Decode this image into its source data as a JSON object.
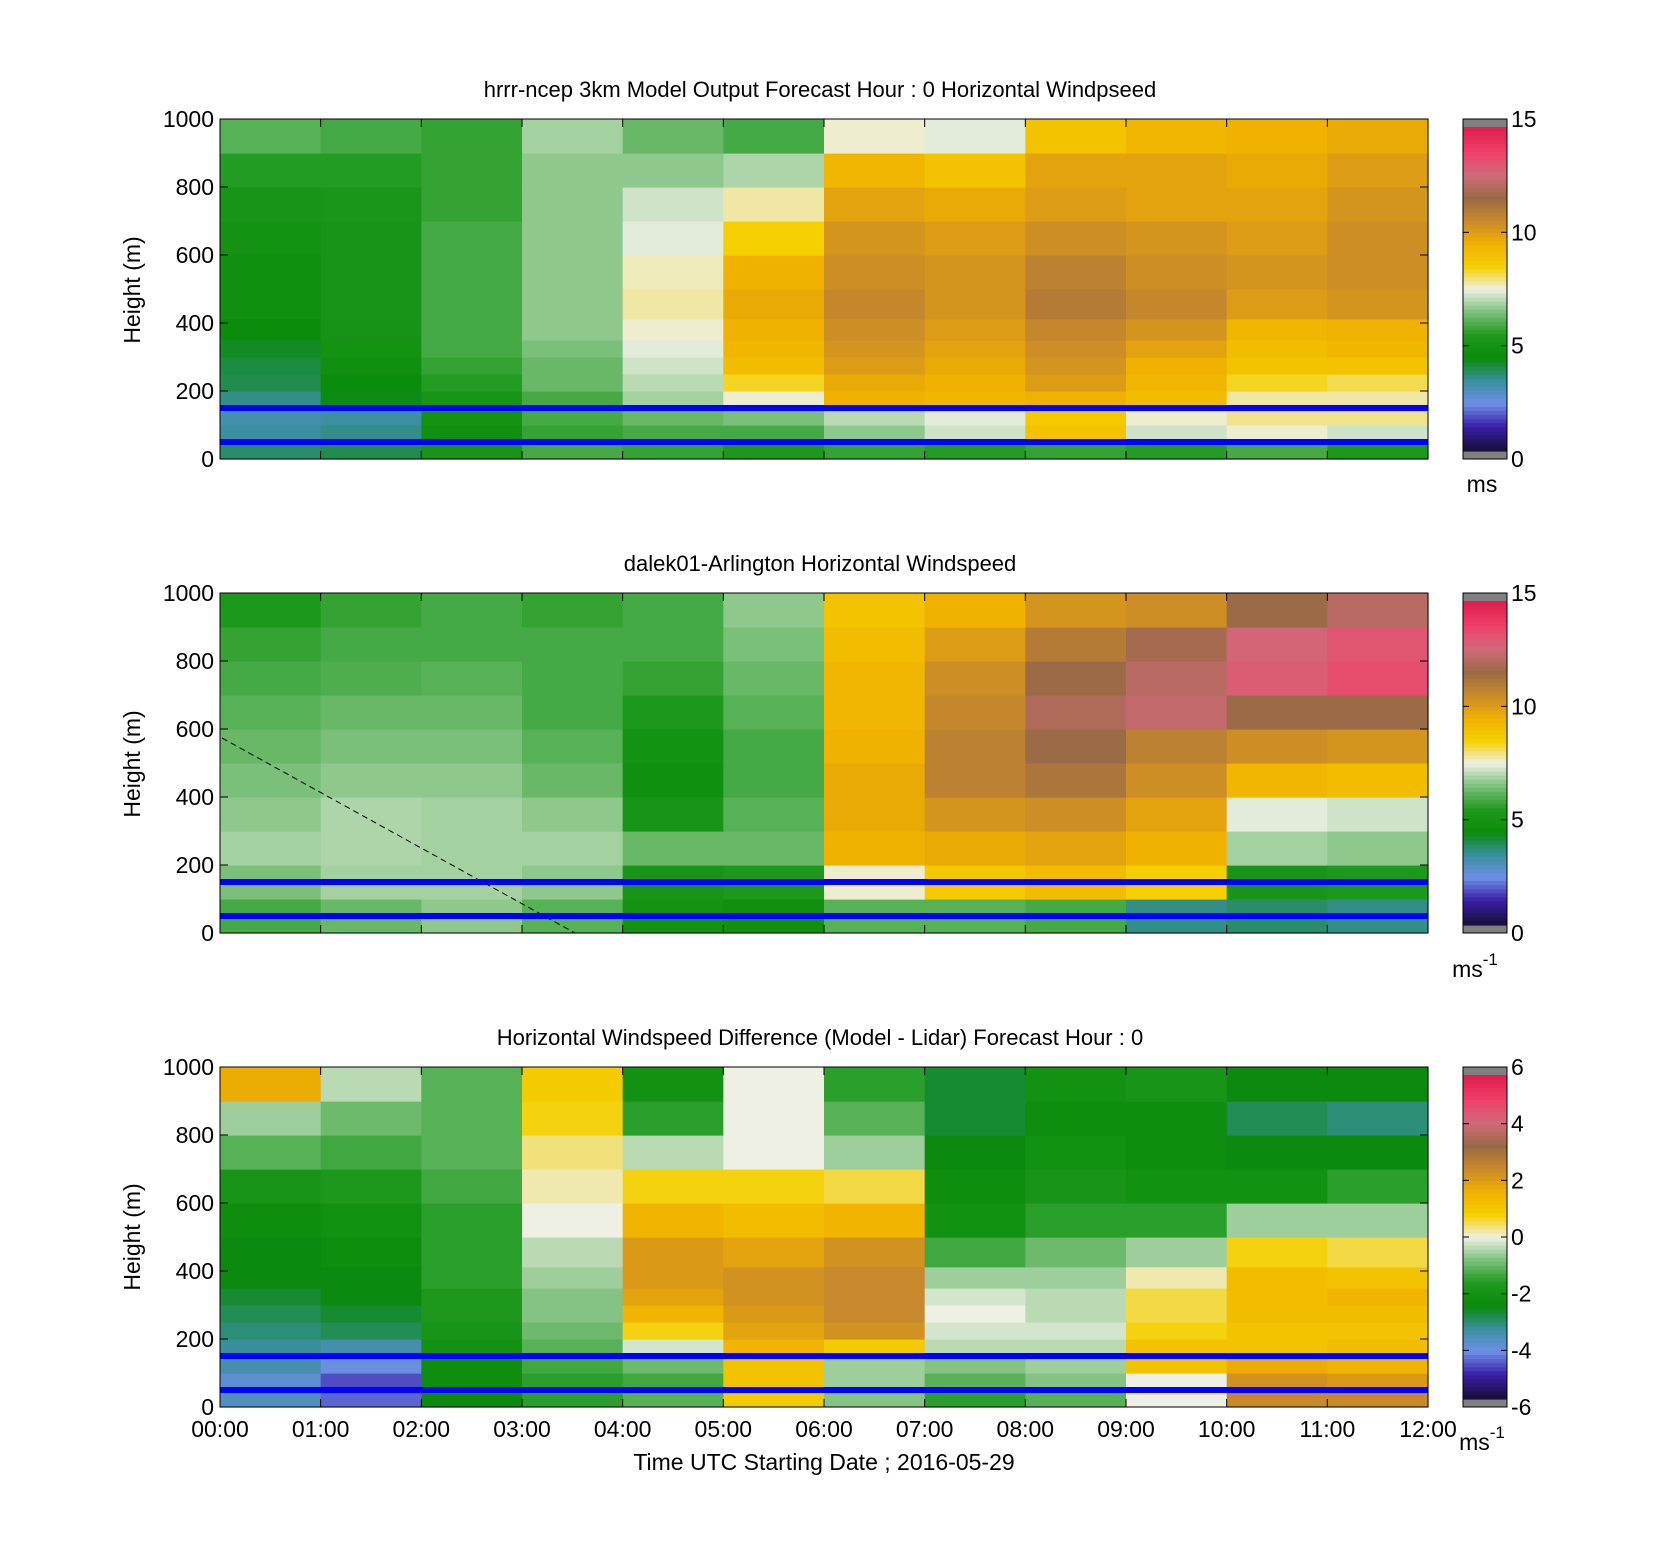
{
  "figure": {
    "xlabel": "Time UTC  Starting Date ; 2016-05-29",
    "time_ticks": [
      "00:00",
      "01:00",
      "02:00",
      "03:00",
      "04:00",
      "05:00",
      "06:00",
      "07:00",
      "08:00",
      "09:00",
      "10:00",
      "11:00",
      "12:00"
    ]
  },
  "colors": {
    "reference_line": "#0000ff",
    "colormap_stops": [
      "#808080",
      "#1a0f3d",
      "#3b1fa8",
      "#6f8fe8",
      "#3a8fa0",
      "#0a8a0a",
      "#1f9a1f",
      "#7cc07c",
      "#eef0e4",
      "#f5d000",
      "#f0b000",
      "#c98a2a",
      "#9a6a45",
      "#d06a7a",
      "#f0406a",
      "#e02050",
      "#808080"
    ]
  },
  "chart_data": [
    {
      "type": "heatmap",
      "title": "hrrr-ncep 3km Model Output   Forecast Hour : 0 Horizontal Windpseed",
      "xlabel": "",
      "ylabel": "Height (m)",
      "ylim": [
        0,
        1000
      ],
      "yticks": [
        "0",
        "200",
        "400",
        "600",
        "800",
        "1000"
      ],
      "colorbar": {
        "range": [
          0,
          15
        ],
        "ticks": [
          "0",
          "5",
          "10",
          "15"
        ],
        "unit": "ms",
        "unit_sup": ""
      },
      "reference_lines_m": [
        50,
        150
      ],
      "x_hours": [
        0,
        1,
        2,
        3,
        4,
        5,
        6,
        7,
        8,
        9,
        10,
        11,
        12
      ],
      "height_bins_m": [
        25,
        75,
        125,
        175,
        225,
        275,
        325,
        375,
        450,
        550,
        650,
        750,
        850,
        950
      ],
      "values": [
        [
          3.6,
          3.8,
          5.0,
          5.8,
          5.6,
          5.2,
          5.6,
          5.4,
          5.6,
          5.4,
          5.8,
          5.2
        ],
        [
          3.2,
          3.4,
          4.6,
          5.6,
          5.8,
          5.8,
          6.6,
          7.2,
          9.0,
          7.2,
          7.6,
          7.2
        ],
        [
          3.0,
          3.2,
          4.8,
          5.8,
          6.2,
          6.4,
          7.0,
          7.4,
          8.8,
          7.6,
          7.9,
          7.9
        ],
        [
          3.4,
          4.2,
          5.0,
          5.8,
          6.8,
          7.6,
          9.6,
          9.4,
          9.6,
          9.2,
          7.8,
          7.8
        ],
        [
          3.8,
          4.4,
          5.4,
          6.2,
          7.0,
          8.4,
          9.8,
          9.6,
          10.2,
          9.4,
          8.4,
          8.2
        ],
        [
          3.9,
          4.6,
          5.6,
          6.2,
          7.2,
          9.2,
          10.2,
          9.8,
          10.4,
          9.6,
          9.0,
          9.0
        ],
        [
          4.1,
          4.8,
          5.8,
          6.4,
          7.4,
          9.4,
          10.4,
          10.0,
          10.6,
          10.0,
          9.2,
          9.4
        ],
        [
          4.4,
          4.9,
          5.8,
          6.6,
          7.6,
          9.6,
          10.6,
          10.2,
          10.8,
          10.4,
          9.4,
          9.6
        ],
        [
          4.6,
          5.0,
          5.8,
          6.6,
          7.8,
          9.8,
          10.8,
          10.4,
          11.2,
          10.8,
          10.2,
          10.4
        ],
        [
          4.6,
          5.0,
          5.8,
          6.6,
          7.7,
          9.6,
          10.6,
          10.4,
          11.0,
          10.6,
          10.4,
          10.6
        ],
        [
          4.8,
          5.0,
          5.8,
          6.6,
          7.4,
          8.6,
          10.4,
          10.2,
          10.6,
          10.4,
          10.2,
          10.6
        ],
        [
          5.0,
          5.1,
          5.6,
          6.6,
          7.2,
          7.8,
          10.0,
          9.8,
          10.2,
          10.0,
          10.0,
          10.4
        ],
        [
          5.4,
          5.4,
          5.6,
          6.6,
          6.6,
          6.9,
          9.4,
          9.0,
          10.0,
          10.0,
          9.8,
          10.2
        ],
        [
          6.0,
          5.8,
          5.6,
          6.8,
          6.2,
          5.8,
          7.6,
          7.4,
          9.0,
          9.4,
          9.6,
          9.8
        ]
      ]
    },
    {
      "type": "heatmap",
      "title": "dalek01-Arlington  Horizontal Windspeed",
      "xlabel": "",
      "ylabel": "Height (m)",
      "ylim": [
        0,
        1000
      ],
      "yticks": [
        "0",
        "200",
        "400",
        "600",
        "800",
        "1000"
      ],
      "colorbar": {
        "range": [
          0,
          15
        ],
        "ticks": [
          "0",
          "5",
          "10",
          "15"
        ],
        "unit": "ms",
        "unit_sup": "-1"
      },
      "reference_lines_m": [
        50,
        150
      ],
      "x_hours": [
        0,
        1,
        2,
        3,
        4,
        5,
        6,
        7,
        8,
        9,
        10,
        11,
        12
      ],
      "height_bins_m": [
        50,
        150,
        250,
        350,
        450,
        550,
        650,
        750,
        850,
        950
      ],
      "values": [
        [
          5.8,
          6.2,
          6.6,
          6.0,
          4.8,
          4.6,
          6.0,
          6.0,
          5.8,
          3.4,
          3.6,
          3.4
        ],
        [
          6.4,
          6.8,
          6.8,
          6.6,
          5.0,
          5.2,
          7.6,
          8.8,
          9.2,
          8.6,
          5.0,
          5.2
        ],
        [
          6.8,
          6.9,
          6.8,
          6.8,
          6.2,
          6.2,
          9.6,
          9.8,
          10.0,
          9.6,
          6.8,
          6.6
        ],
        [
          6.6,
          6.9,
          6.8,
          6.6,
          5.0,
          6.0,
          9.8,
          10.4,
          10.6,
          10.0,
          7.4,
          7.2
        ],
        [
          6.4,
          6.6,
          6.6,
          6.2,
          4.6,
          5.8,
          9.8,
          11.0,
          11.4,
          10.6,
          9.4,
          9.2
        ],
        [
          6.2,
          6.4,
          6.4,
          6.0,
          4.8,
          5.8,
          9.6,
          11.0,
          11.8,
          11.0,
          10.6,
          10.4
        ],
        [
          6.0,
          6.2,
          6.2,
          5.8,
          5.2,
          6.0,
          9.4,
          10.8,
          12.2,
          12.6,
          11.8,
          11.8
        ],
        [
          5.8,
          5.9,
          6.0,
          5.8,
          5.6,
          6.2,
          9.4,
          10.6,
          11.8,
          12.4,
          13.2,
          13.6
        ],
        [
          5.6,
          5.8,
          5.8,
          5.8,
          5.8,
          6.4,
          9.2,
          10.2,
          11.2,
          12.0,
          13.0,
          13.4
        ],
        [
          5.2,
          5.6,
          5.8,
          5.6,
          5.8,
          6.6,
          9.0,
          9.6,
          10.4,
          10.6,
          11.8,
          12.4
        ]
      ]
    },
    {
      "type": "heatmap",
      "title": "Horizontal Windspeed Difference (Model - Lidar) Forecast Hour : 0",
      "xlabel": "Time UTC  Starting Date ; 2016-05-29",
      "ylabel": "Height (m)",
      "ylim": [
        0,
        1000
      ],
      "yticks": [
        "0",
        "200",
        "400",
        "600",
        "800",
        "1000"
      ],
      "colorbar": {
        "range": [
          -6,
          6
        ],
        "ticks": [
          "-6",
          "-4",
          "-2",
          "0",
          "2",
          "4",
          "6"
        ],
        "unit": "ms",
        "unit_sup": "-1"
      },
      "reference_lines_m": [
        50,
        150
      ],
      "x_hours": [
        0,
        1,
        2,
        3,
        4,
        5,
        6,
        7,
        8,
        9,
        10,
        11,
        12
      ],
      "height_bins_m": [
        25,
        75,
        125,
        175,
        225,
        275,
        325,
        375,
        450,
        550,
        650,
        750,
        850,
        950
      ],
      "values": [
        [
          -3.8,
          -4.6,
          -2.6,
          -1.6,
          -1.2,
          1.0,
          -0.8,
          -1.6,
          -1.2,
          0.0,
          2.6,
          2.6
        ],
        [
          -4.0,
          -4.8,
          -2.4,
          -1.6,
          -1.4,
          1.2,
          -0.6,
          -1.2,
          -0.8,
          0.0,
          2.4,
          2.2
        ],
        [
          -3.6,
          -4.2,
          -2.4,
          -1.4,
          -1.0,
          1.2,
          -0.6,
          -0.8,
          -0.6,
          1.2,
          1.8,
          1.6
        ],
        [
          -3.4,
          -3.6,
          -2.2,
          -1.2,
          -0.2,
          1.6,
          1.0,
          -0.4,
          -0.4,
          1.2,
          1.2,
          1.4
        ],
        [
          -3.2,
          -3.0,
          -2.0,
          -1.0,
          0.8,
          2.0,
          2.4,
          -0.2,
          -0.2,
          0.8,
          1.2,
          1.2
        ],
        [
          -3.0,
          -2.8,
          -1.8,
          -0.8,
          1.6,
          2.2,
          2.6,
          0.0,
          -0.4,
          0.6,
          1.4,
          1.4
        ],
        [
          -2.8,
          -2.6,
          -1.8,
          -0.8,
          2.0,
          2.4,
          2.6,
          -0.2,
          -0.4,
          0.6,
          1.4,
          1.6
        ],
        [
          -2.6,
          -2.6,
          -1.6,
          -0.6,
          2.2,
          2.4,
          2.6,
          -0.6,
          -0.6,
          0.2,
          1.4,
          1.2
        ],
        [
          -2.6,
          -2.4,
          -1.6,
          -0.4,
          2.2,
          2.0,
          2.4,
          -1.4,
          -1.0,
          -0.6,
          0.8,
          0.6
        ],
        [
          -2.4,
          -2.2,
          -1.6,
          0.0,
          1.6,
          1.4,
          1.6,
          -2.2,
          -1.6,
          -1.6,
          -0.6,
          -0.6
        ],
        [
          -2.0,
          -1.8,
          -1.4,
          0.2,
          0.8,
          0.8,
          0.6,
          -2.4,
          -2.0,
          -2.2,
          -2.2,
          -1.6
        ],
        [
          -1.2,
          -1.4,
          -1.2,
          0.4,
          -0.4,
          0.0,
          -0.6,
          -2.6,
          -2.2,
          -2.4,
          -2.6,
          -2.6
        ],
        [
          -0.6,
          -1.0,
          -1.2,
          0.8,
          -1.6,
          0.0,
          -1.2,
          -2.8,
          -2.4,
          -2.4,
          -3.0,
          -3.2
        ],
        [
          1.8,
          -0.4,
          -1.2,
          1.0,
          -2.2,
          0.0,
          -1.6,
          -2.8,
          -2.2,
          -2.0,
          -2.6,
          -2.6
        ]
      ]
    }
  ]
}
